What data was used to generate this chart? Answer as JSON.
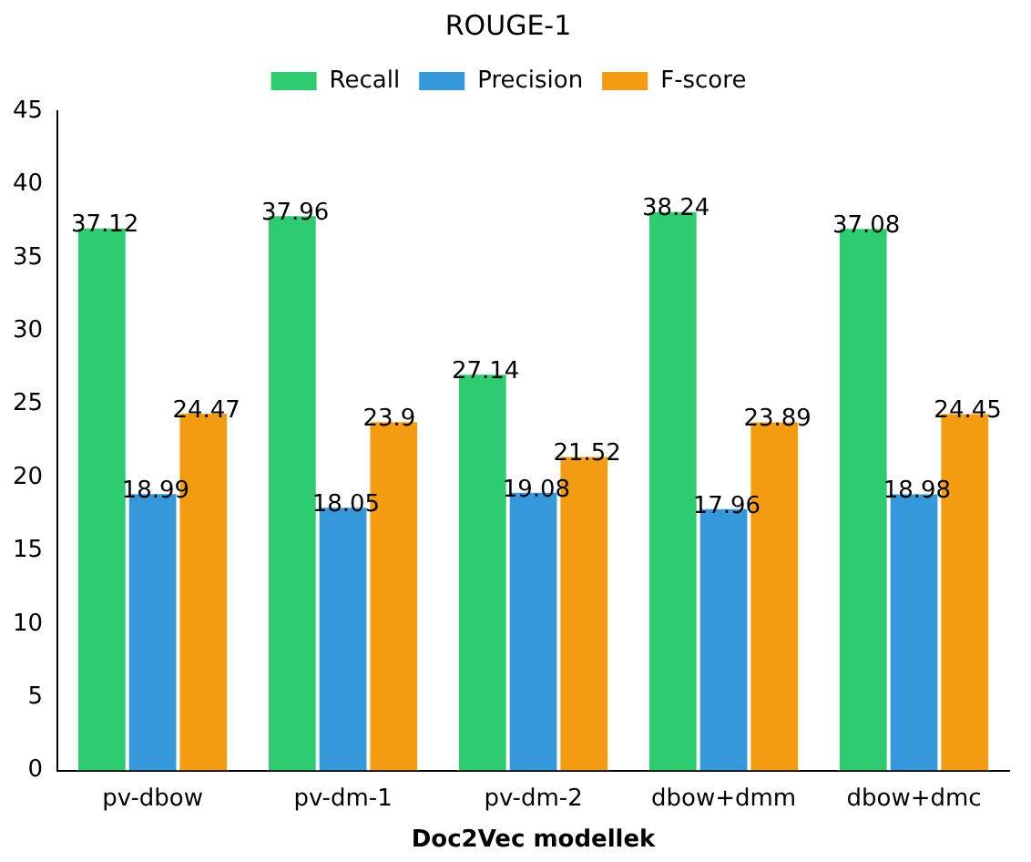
{
  "chart_data": {
    "type": "bar",
    "title": "ROUGE-1",
    "xlabel": "Doc2Vec modellek",
    "categories": [
      "pv-dbow",
      "pv-dm-1",
      "pv-dm-2",
      "dbow+dmm",
      "dbow+dmc"
    ],
    "series": [
      {
        "name": "Recall",
        "color": "#2ecc71",
        "values": [
          37.12,
          37.96,
          27.14,
          38.24,
          37.08
        ]
      },
      {
        "name": "Precision",
        "color": "#3498db",
        "values": [
          18.99,
          18.05,
          19.08,
          17.96,
          18.98
        ]
      },
      {
        "name": "F-score",
        "color": "#f39c12",
        "values": [
          24.47,
          23.9,
          21.52,
          23.89,
          24.45
        ]
      }
    ],
    "ylim": [
      0,
      45
    ],
    "yticks": [
      0,
      5,
      10,
      15,
      20,
      25,
      30,
      35,
      40,
      45
    ],
    "grid": false,
    "legend": "top",
    "data_labels": true
  }
}
